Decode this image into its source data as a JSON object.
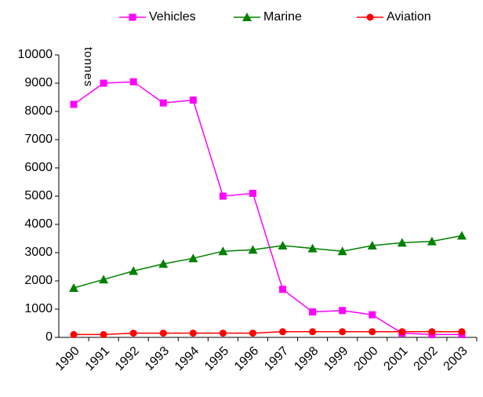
{
  "chart_data": {
    "type": "line",
    "y_label": "tonnes",
    "categories": [
      "1990",
      "1991",
      "1992",
      "1993",
      "1994",
      "1995",
      "1996",
      "1997",
      "1998",
      "1999",
      "2000",
      "2001",
      "2002",
      "2003"
    ],
    "series": [
      {
        "name": "Vehicles",
        "color": "#ff00ff",
        "marker": "square",
        "values": [
          8250,
          9000,
          9050,
          8300,
          8400,
          5000,
          5100,
          1700,
          900,
          950,
          800,
          150,
          100,
          100
        ]
      },
      {
        "name": "Marine",
        "color": "#008000",
        "marker": "triangle",
        "values": [
          1750,
          2050,
          2350,
          2600,
          2800,
          3050,
          3100,
          3250,
          3150,
          3050,
          3250,
          3350,
          3400,
          3600
        ]
      },
      {
        "name": "Aviation",
        "color": "#ff0000",
        "marker": "circle",
        "values": [
          100,
          100,
          150,
          150,
          150,
          150,
          150,
          200,
          200,
          200,
          200,
          200,
          200,
          200
        ]
      }
    ],
    "ylim": [
      0,
      10000
    ],
    "yticks": [
      0,
      1000,
      2000,
      3000,
      4000,
      5000,
      6000,
      7000,
      8000,
      9000,
      10000
    ],
    "grid": false,
    "legend": "top"
  }
}
